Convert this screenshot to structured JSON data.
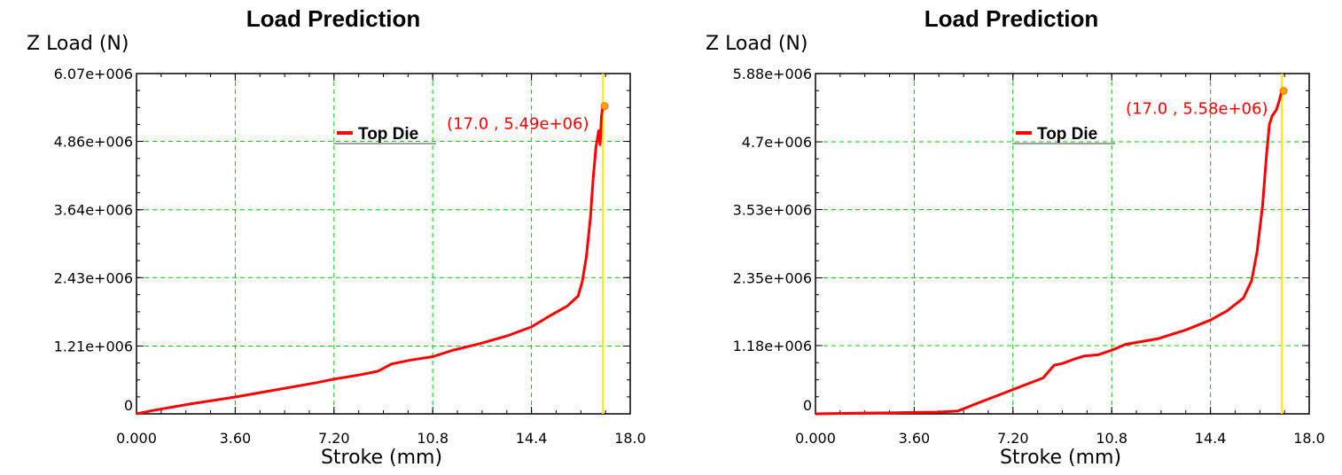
{
  "chart_data": [
    {
      "type": "line",
      "title": "Load Prediction",
      "xlabel": "Stroke (mm)",
      "ylabel": "Z Load (N)",
      "xlim": [
        0,
        18
      ],
      "ylim": [
        0,
        6070000
      ],
      "x_ticks": [
        "0.000",
        "3.60",
        "7.20",
        "10.8",
        "14.4",
        "18.0"
      ],
      "x_tick_values": [
        0,
        3.6,
        7.2,
        10.8,
        14.4,
        18.0
      ],
      "y_ticks": [
        "0",
        "1.21e+006",
        "2.43e+006",
        "3.64e+006",
        "4.86e+006",
        "6.07e+006"
      ],
      "y_tick_values": [
        0,
        1210000,
        2430000,
        3640000,
        4860000,
        6070000
      ],
      "grid": true,
      "legend_position": "top-center",
      "marker_line_x": 17.0,
      "annotation": "(17.0 , 5.49e+06)",
      "annotation_point": [
        17.0,
        5490000.0
      ],
      "series": [
        {
          "name": "Top Die",
          "color": "#ff0000",
          "x": [
            0,
            0.6,
            2,
            3.6,
            5,
            6.5,
            7.2,
            8.2,
            8.8,
            9.3,
            10,
            10.8,
            11.5,
            12.5,
            13.5,
            14.4,
            15,
            15.7,
            16.1,
            16.25,
            16.4,
            16.55,
            16.65,
            16.75,
            16.85,
            16.9,
            16.95,
            17.0
          ],
          "y": [
            0,
            60000.0,
            180000.0,
            300000.0,
            420000.0,
            550000.0,
            620000.0,
            700000.0,
            760000.0,
            890000.0,
            960000.0,
            1020000.0,
            1130000.0,
            1250000.0,
            1390000.0,
            1550000.0,
            1730000.0,
            1920000.0,
            2100000.0,
            2350000.0,
            2800000.0,
            3500000.0,
            4200000.0,
            4750000.0,
            5050000.0,
            4800000.0,
            5300000.0,
            5490000.0
          ]
        }
      ]
    },
    {
      "type": "line",
      "title": "Load Prediction",
      "xlabel": "Stroke (mm)",
      "ylabel": "Z Load (N)",
      "xlim": [
        0,
        18
      ],
      "ylim": [
        0,
        5880000
      ],
      "x_ticks": [
        "0.000",
        "3.60",
        "7.20",
        "10.8",
        "14.4",
        "18.0"
      ],
      "x_tick_values": [
        0,
        3.6,
        7.2,
        10.8,
        14.4,
        18.0
      ],
      "y_ticks": [
        "0",
        "1.18e+006",
        "2.35e+006",
        "3.53e+006",
        "4.7e+006",
        "5.88e+006"
      ],
      "y_tick_values": [
        0,
        1180000,
        2350000,
        3530000,
        4700000,
        5880000
      ],
      "grid": true,
      "legend_position": "top-center",
      "marker_line_x": 17.0,
      "annotation": "(17.0 , 5.58e+06)",
      "annotation_point": [
        17.0,
        5580000.0
      ],
      "series": [
        {
          "name": "Top Die",
          "color": "#ff0000",
          "x": [
            0,
            1.5,
            3.0,
            4.5,
            5.2,
            6.0,
            7.2,
            8.3,
            8.7,
            9.0,
            9.4,
            9.8,
            10.3,
            10.8,
            11.3,
            12.5,
            13.5,
            14.4,
            15.0,
            15.6,
            15.9,
            16.1,
            16.3,
            16.45,
            16.55,
            16.65,
            16.8,
            16.9,
            17.0
          ],
          "y": [
            0,
            10000.0,
            20000.0,
            30000.0,
            50000.0,
            200000.0,
            420000.0,
            620000.0,
            840000.0,
            870000.0,
            940000.0,
            1000000.0,
            1020000.0,
            1100000.0,
            1200000.0,
            1300000.0,
            1450000.0,
            1620000.0,
            1780000.0,
            2000000.0,
            2300000.0,
            2800000.0,
            3600000.0,
            4500000.0,
            5000000.0,
            5150000.0,
            5250000.0,
            5400000.0,
            5580000.0
          ]
        }
      ]
    }
  ]
}
